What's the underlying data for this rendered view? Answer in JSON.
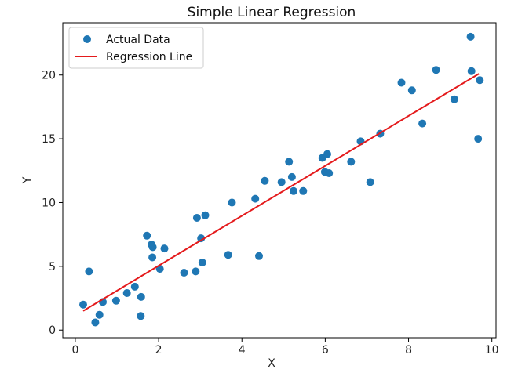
{
  "chart_data": {
    "type": "scatter",
    "title": "Simple Linear Regression",
    "xlabel": "X",
    "ylabel": "Y",
    "xlim": [
      -0.3,
      10.1
    ],
    "ylim": [
      -0.6,
      24.1
    ],
    "x_ticks": [
      0,
      2,
      4,
      6,
      8,
      10
    ],
    "y_ticks": [
      0,
      5,
      10,
      15,
      20
    ],
    "grid": false,
    "legend_position": "top-left",
    "series": [
      {
        "name": "Actual Data",
        "kind": "scatter",
        "color": "#1f77b4",
        "points": [
          [
            0.19,
            2.0
          ],
          [
            0.33,
            4.6
          ],
          [
            0.48,
            0.6
          ],
          [
            0.58,
            1.2
          ],
          [
            0.66,
            2.2
          ],
          [
            0.98,
            2.3
          ],
          [
            1.24,
            2.9
          ],
          [
            1.43,
            3.4
          ],
          [
            1.58,
            2.6
          ],
          [
            1.57,
            1.1
          ],
          [
            1.72,
            7.4
          ],
          [
            1.83,
            6.7
          ],
          [
            1.86,
            6.5
          ],
          [
            1.85,
            5.7
          ],
          [
            2.03,
            4.8
          ],
          [
            2.14,
            6.4
          ],
          [
            2.61,
            4.5
          ],
          [
            2.89,
            4.6
          ],
          [
            2.92,
            8.8
          ],
          [
            3.02,
            7.2
          ],
          [
            3.05,
            5.3
          ],
          [
            3.12,
            9.0
          ],
          [
            3.67,
            5.9
          ],
          [
            3.76,
            10.0
          ],
          [
            4.32,
            10.3
          ],
          [
            4.41,
            5.8
          ],
          [
            4.55,
            11.7
          ],
          [
            4.95,
            11.6
          ],
          [
            5.13,
            13.2
          ],
          [
            5.2,
            12.0
          ],
          [
            5.24,
            10.9
          ],
          [
            5.47,
            10.9
          ],
          [
            5.93,
            13.5
          ],
          [
            5.99,
            12.4
          ],
          [
            6.05,
            13.8
          ],
          [
            6.09,
            12.3
          ],
          [
            6.62,
            13.2
          ],
          [
            6.85,
            14.8
          ],
          [
            7.08,
            11.6
          ],
          [
            7.32,
            15.4
          ],
          [
            7.83,
            19.4
          ],
          [
            8.08,
            18.8
          ],
          [
            8.33,
            16.2
          ],
          [
            8.66,
            20.4
          ],
          [
            9.1,
            18.1
          ],
          [
            9.49,
            23.0
          ],
          [
            9.51,
            20.3
          ],
          [
            9.67,
            15.0
          ],
          [
            9.71,
            19.6
          ]
        ]
      },
      {
        "name": "Regression Line",
        "kind": "line",
        "color": "#e41a1c",
        "points": [
          [
            0.19,
            1.5
          ],
          [
            9.69,
            20.1
          ]
        ]
      }
    ]
  }
}
